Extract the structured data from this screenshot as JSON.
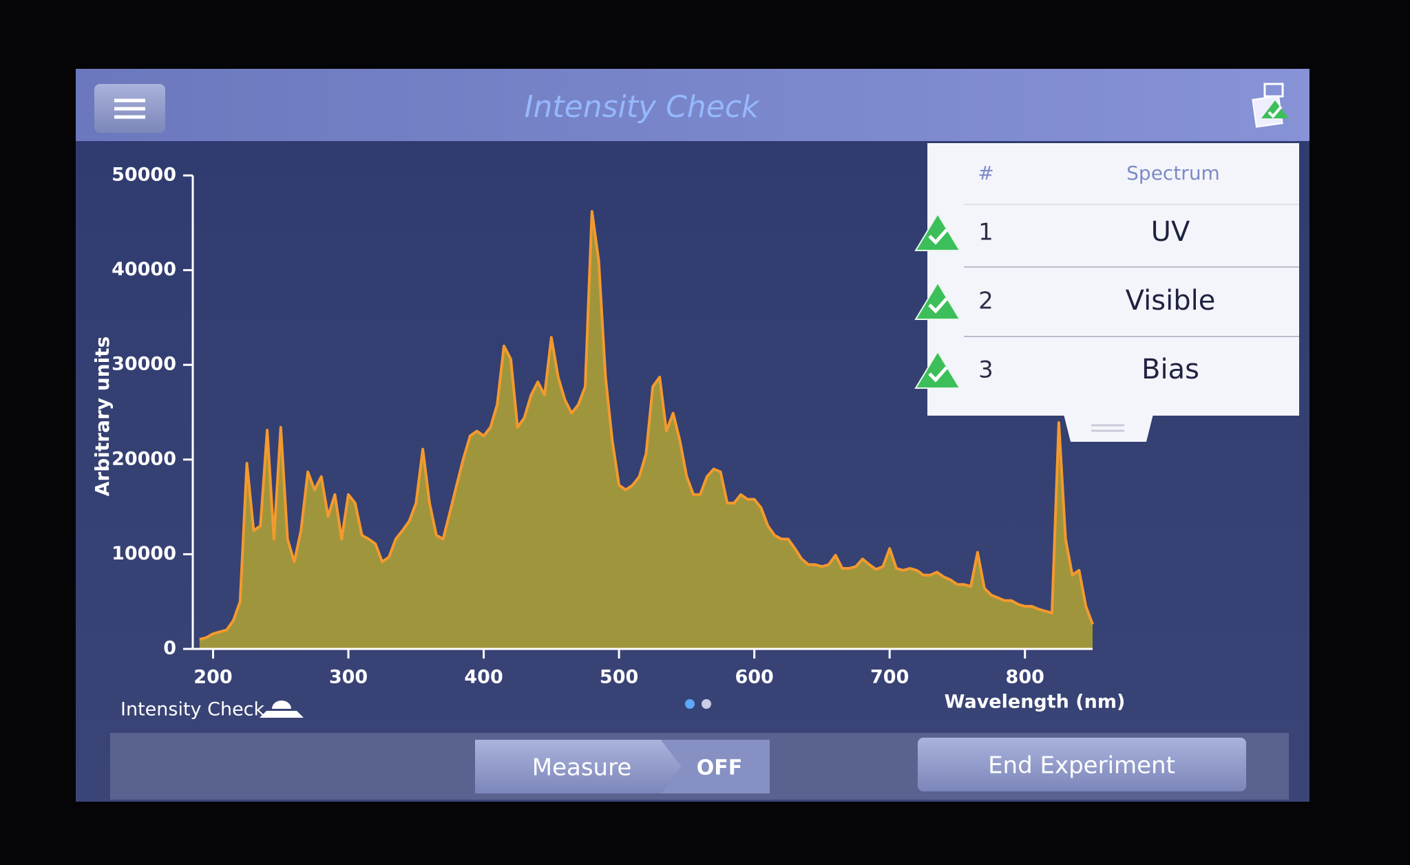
{
  "header": {
    "title": "Intensity Check"
  },
  "chart_data": {
    "type": "area",
    "x_label": "Wavelength (nm)",
    "y_label": "Arbitrary units",
    "x": [
      190,
      195,
      200,
      205,
      210,
      215,
      220,
      225,
      230,
      235,
      240,
      245,
      250,
      255,
      260,
      265,
      270,
      275,
      280,
      285,
      290,
      295,
      300,
      305,
      310,
      315,
      320,
      325,
      330,
      335,
      340,
      345,
      350,
      355,
      360,
      365,
      370,
      375,
      380,
      385,
      390,
      395,
      400,
      405,
      410,
      415,
      420,
      425,
      430,
      435,
      440,
      445,
      450,
      455,
      460,
      465,
      470,
      475,
      480,
      485,
      490,
      495,
      500,
      505,
      510,
      515,
      520,
      525,
      530,
      535,
      540,
      545,
      550,
      555,
      560,
      565,
      570,
      575,
      580,
      585,
      590,
      595,
      600,
      605,
      610,
      615,
      620,
      625,
      630,
      635,
      640,
      645,
      650,
      655,
      660,
      665,
      670,
      675,
      680,
      685,
      690,
      695,
      700,
      705,
      710,
      715,
      720,
      725,
      730,
      735,
      740,
      745,
      750,
      755,
      760,
      765,
      770,
      775,
      780,
      785,
      790,
      795,
      800,
      805,
      810,
      815,
      820,
      825,
      830,
      835,
      840,
      845,
      850
    ],
    "values": [
      1000,
      1200,
      1600,
      1800,
      2000,
      3000,
      5000,
      19600,
      12500,
      13000,
      23100,
      11600,
      23400,
      11600,
      9200,
      12500,
      18700,
      16800,
      18200,
      14000,
      16300,
      11600,
      16300,
      15400,
      12000,
      11600,
      11100,
      9200,
      9700,
      11600,
      12500,
      13500,
      15400,
      21100,
      15400,
      12000,
      11600,
      14400,
      17300,
      20100,
      22500,
      23000,
      22500,
      23400,
      25800,
      32000,
      30600,
      23400,
      24400,
      26800,
      28200,
      26800,
      32900,
      28700,
      26300,
      24900,
      25800,
      27700,
      46200,
      41000,
      28700,
      22000,
      17300,
      16800,
      17300,
      18200,
      20600,
      27700,
      28700,
      23000,
      24900,
      22000,
      18200,
      16300,
      16300,
      18200,
      19000,
      18700,
      15400,
      15400,
      16300,
      15800,
      15800,
      14900,
      13000,
      12000,
      11600,
      11600,
      10600,
      9500,
      8900,
      8900,
      8700,
      8900,
      9900,
      8500,
      8500,
      8700,
      9500,
      8900,
      8400,
      8700,
      10600,
      8500,
      8300,
      8500,
      8300,
      7800,
      7800,
      8100,
      7600,
      7300,
      6800,
      6800,
      6600,
      10200,
      6400,
      5700,
      5400,
      5100,
      5100,
      4700,
      4500,
      4500,
      4200,
      4000,
      3800,
      23900,
      11600,
      7800,
      8300,
      4500,
      2600
    ],
    "color": "#f39a2e",
    "fill": "#a89c38",
    "xlim": [
      185,
      850
    ],
    "xticks": [
      200,
      300,
      400,
      500,
      600,
      700,
      800
    ],
    "ylim": [
      0,
      50000
    ],
    "yticks": [
      0,
      10000,
      20000,
      30000,
      40000,
      50000
    ]
  },
  "chart_caption": "Intensity Check",
  "table": {
    "columns": [
      "#",
      "Spectrum"
    ],
    "rows": [
      [
        "1",
        "UV"
      ],
      [
        "2",
        "Visible"
      ],
      [
        "3",
        "Bias"
      ]
    ]
  },
  "buttons": {
    "measure": "Measure",
    "toggle": "OFF",
    "end": "End Experiment"
  }
}
